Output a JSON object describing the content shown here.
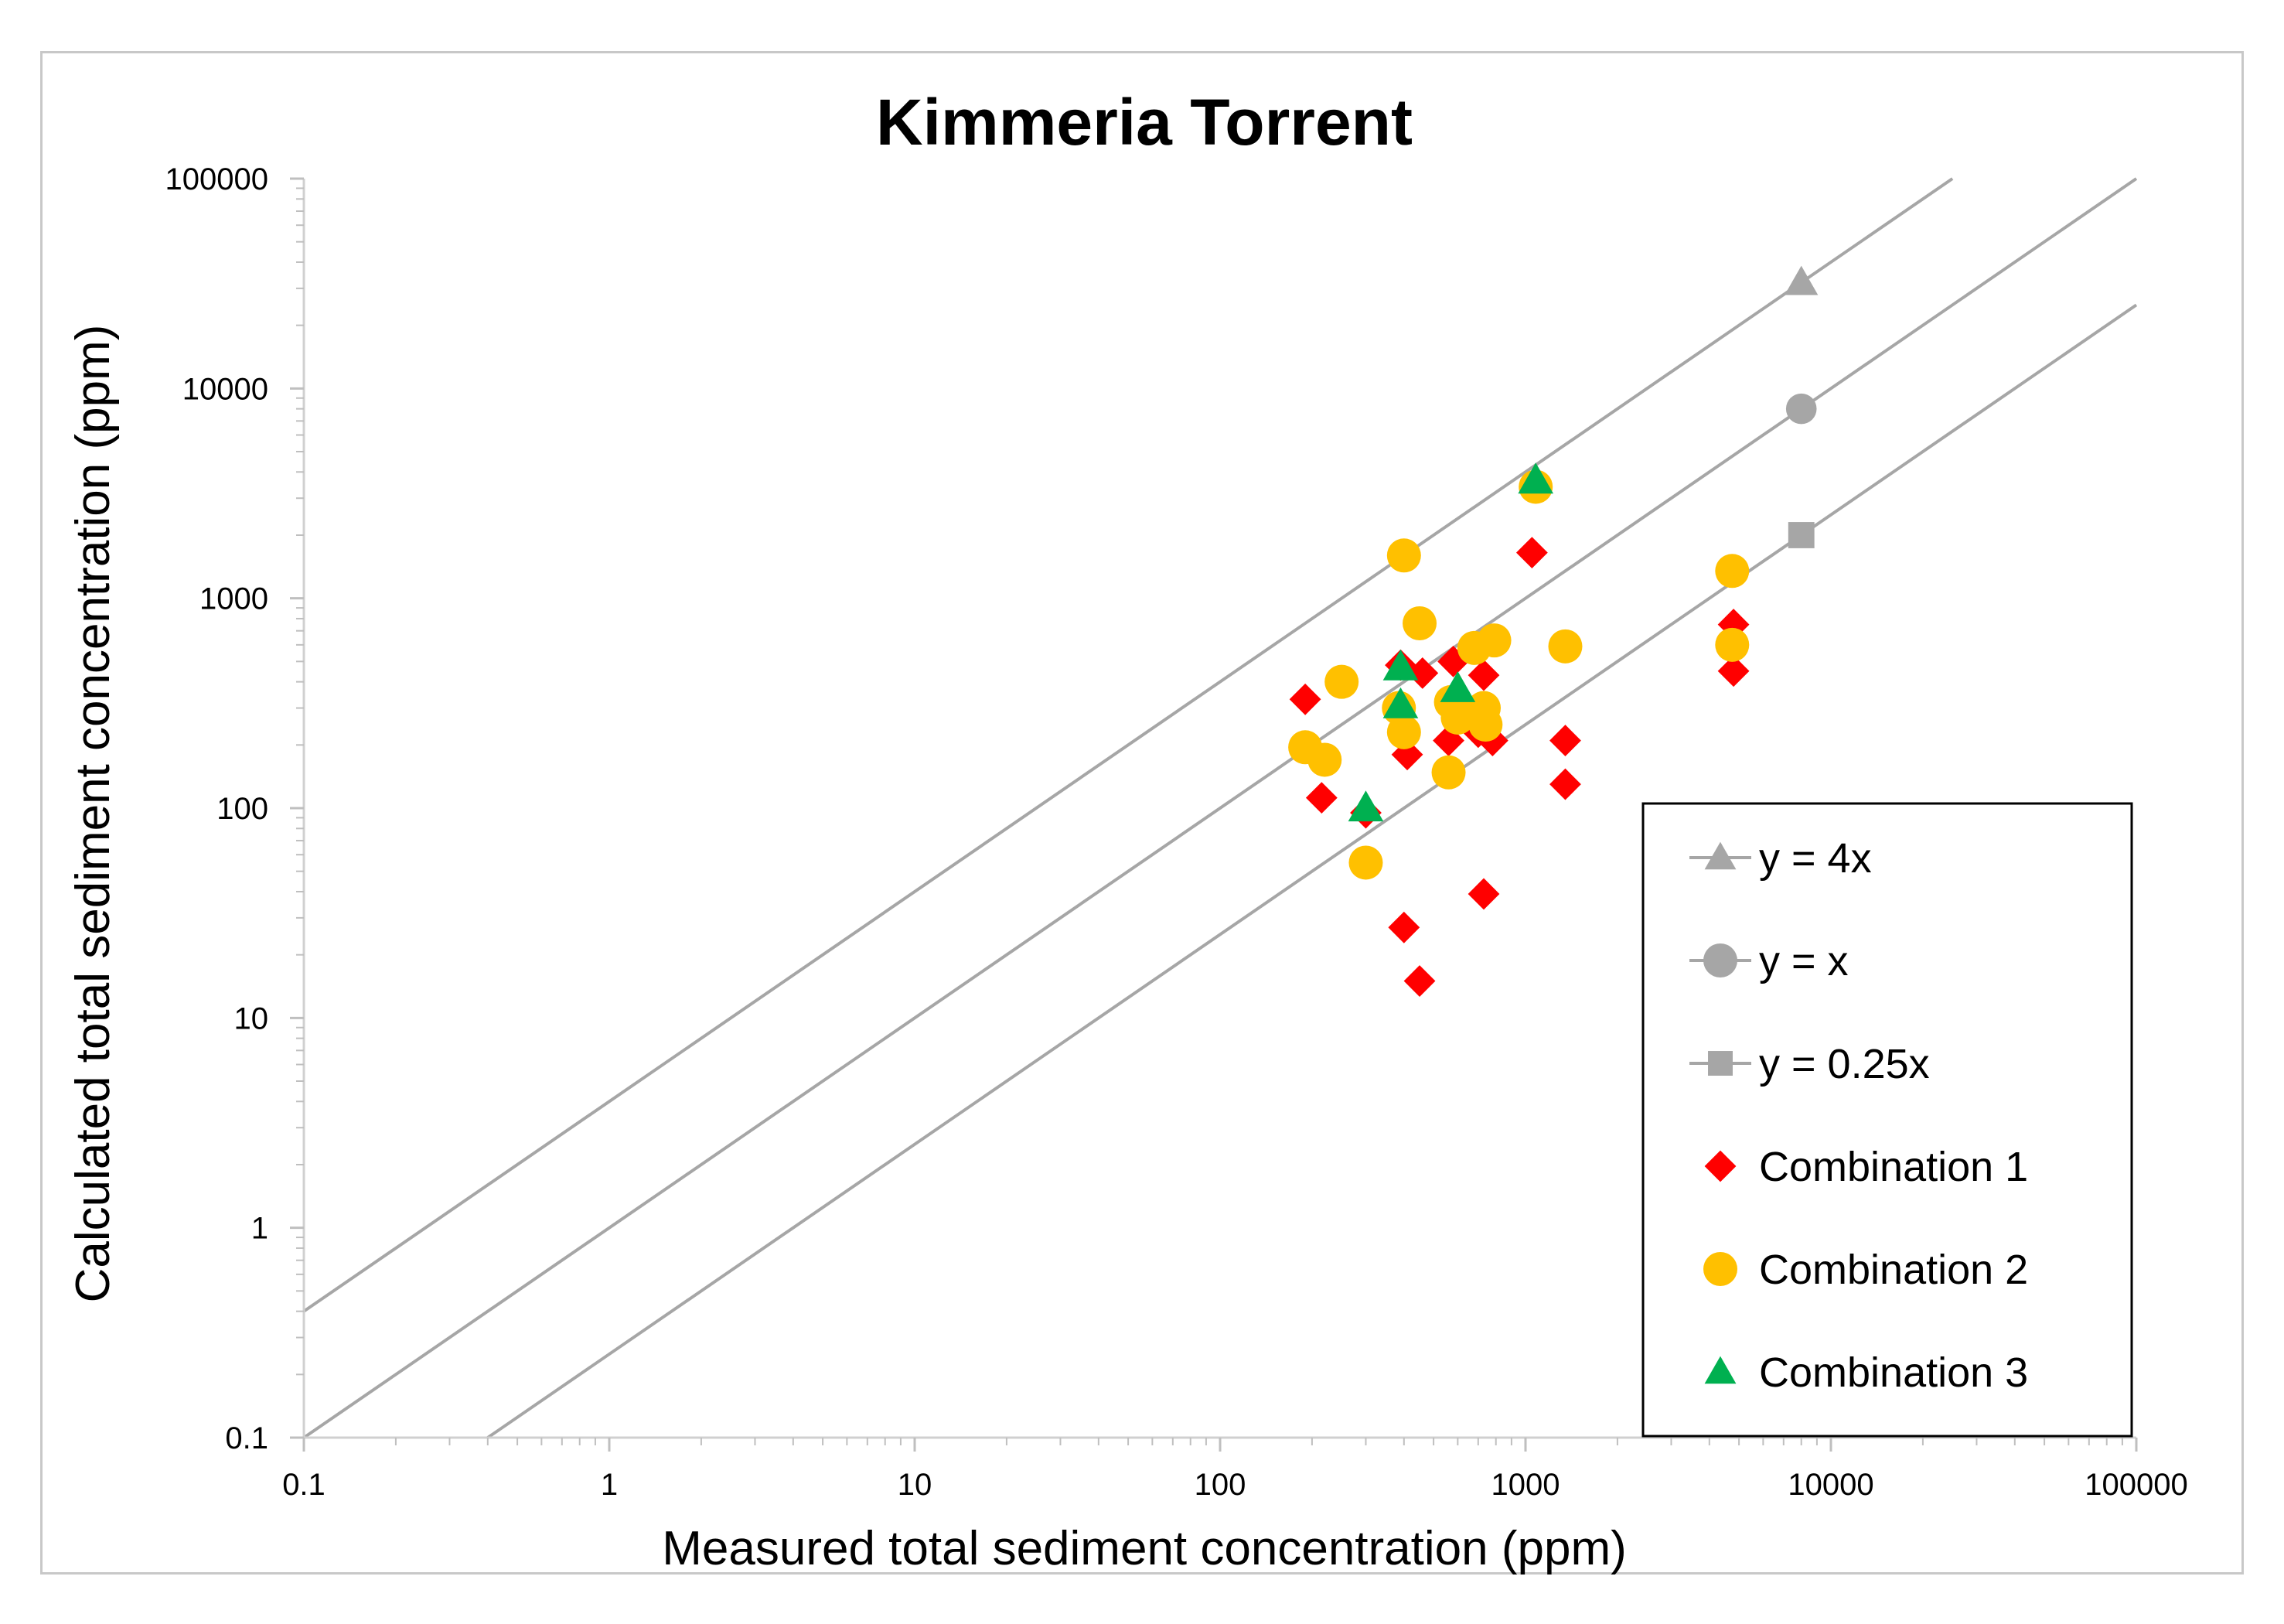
{
  "chart_data": {
    "type": "scatter",
    "title": "Kimmeria Torrent",
    "xlabel": "Measured total sediment concentration (ppm)",
    "ylabel": "Calculated total sediment concentration (ppm)",
    "xscale": "log",
    "yscale": "log",
    "xlim": [
      0.1,
      100000
    ],
    "ylim": [
      0.1,
      100000
    ],
    "x_ticks": [
      "0.1",
      "1",
      "10",
      "100",
      "1000",
      "10000",
      "100000"
    ],
    "y_ticks": [
      "0.1",
      "1",
      "10",
      "100",
      "1000",
      "10000",
      "100000"
    ],
    "grid": false,
    "legend_position": "bottom-right",
    "reference_lines": [
      {
        "name": "y = 4x",
        "factor": 4,
        "marker": "triangle",
        "color": "#a6a6a6",
        "marker_x": 8000
      },
      {
        "name": "y = x",
        "factor": 1,
        "marker": "circle",
        "color": "#a6a6a6",
        "marker_x": 8000
      },
      {
        "name": "y = 0.25x",
        "factor": 0.25,
        "marker": "square",
        "color": "#a6a6a6",
        "marker_x": 8000
      }
    ],
    "series": [
      {
        "name": "Combination 1",
        "marker": "diamond",
        "color": "#ff0000",
        "points": [
          {
            "x": 190,
            "y": 330
          },
          {
            "x": 215,
            "y": 112
          },
          {
            "x": 300,
            "y": 95
          },
          {
            "x": 390,
            "y": 480
          },
          {
            "x": 410,
            "y": 180
          },
          {
            "x": 400,
            "y": 27
          },
          {
            "x": 450,
            "y": 15
          },
          {
            "x": 460,
            "y": 440
          },
          {
            "x": 560,
            "y": 210
          },
          {
            "x": 580,
            "y": 500
          },
          {
            "x": 600,
            "y": 280
          },
          {
            "x": 700,
            "y": 230
          },
          {
            "x": 730,
            "y": 430
          },
          {
            "x": 780,
            "y": 210
          },
          {
            "x": 730,
            "y": 39
          },
          {
            "x": 1050,
            "y": 1650
          },
          {
            "x": 1350,
            "y": 210
          },
          {
            "x": 1350,
            "y": 130
          },
          {
            "x": 4800,
            "y": 750
          },
          {
            "x": 4800,
            "y": 450
          }
        ]
      },
      {
        "name": "Combination 2",
        "marker": "circle",
        "color": "#ffc000",
        "points": [
          {
            "x": 190,
            "y": 195
          },
          {
            "x": 220,
            "y": 170
          },
          {
            "x": 250,
            "y": 400
          },
          {
            "x": 300,
            "y": 55
          },
          {
            "x": 385,
            "y": 300
          },
          {
            "x": 400,
            "y": 1600
          },
          {
            "x": 400,
            "y": 230
          },
          {
            "x": 450,
            "y": 760
          },
          {
            "x": 560,
            "y": 148
          },
          {
            "x": 570,
            "y": 320
          },
          {
            "x": 600,
            "y": 270
          },
          {
            "x": 680,
            "y": 580
          },
          {
            "x": 730,
            "y": 300
          },
          {
            "x": 740,
            "y": 250
          },
          {
            "x": 790,
            "y": 630
          },
          {
            "x": 1080,
            "y": 3400
          },
          {
            "x": 1350,
            "y": 590
          },
          {
            "x": 4750,
            "y": 1350
          },
          {
            "x": 4750,
            "y": 600
          }
        ]
      },
      {
        "name": "Combination 3",
        "marker": "triangle",
        "color": "#00b050",
        "points": [
          {
            "x": 300,
            "y": 100
          },
          {
            "x": 390,
            "y": 470
          },
          {
            "x": 390,
            "y": 310
          },
          {
            "x": 600,
            "y": 370
          },
          {
            "x": 1080,
            "y": 3650
          }
        ]
      }
    ]
  }
}
